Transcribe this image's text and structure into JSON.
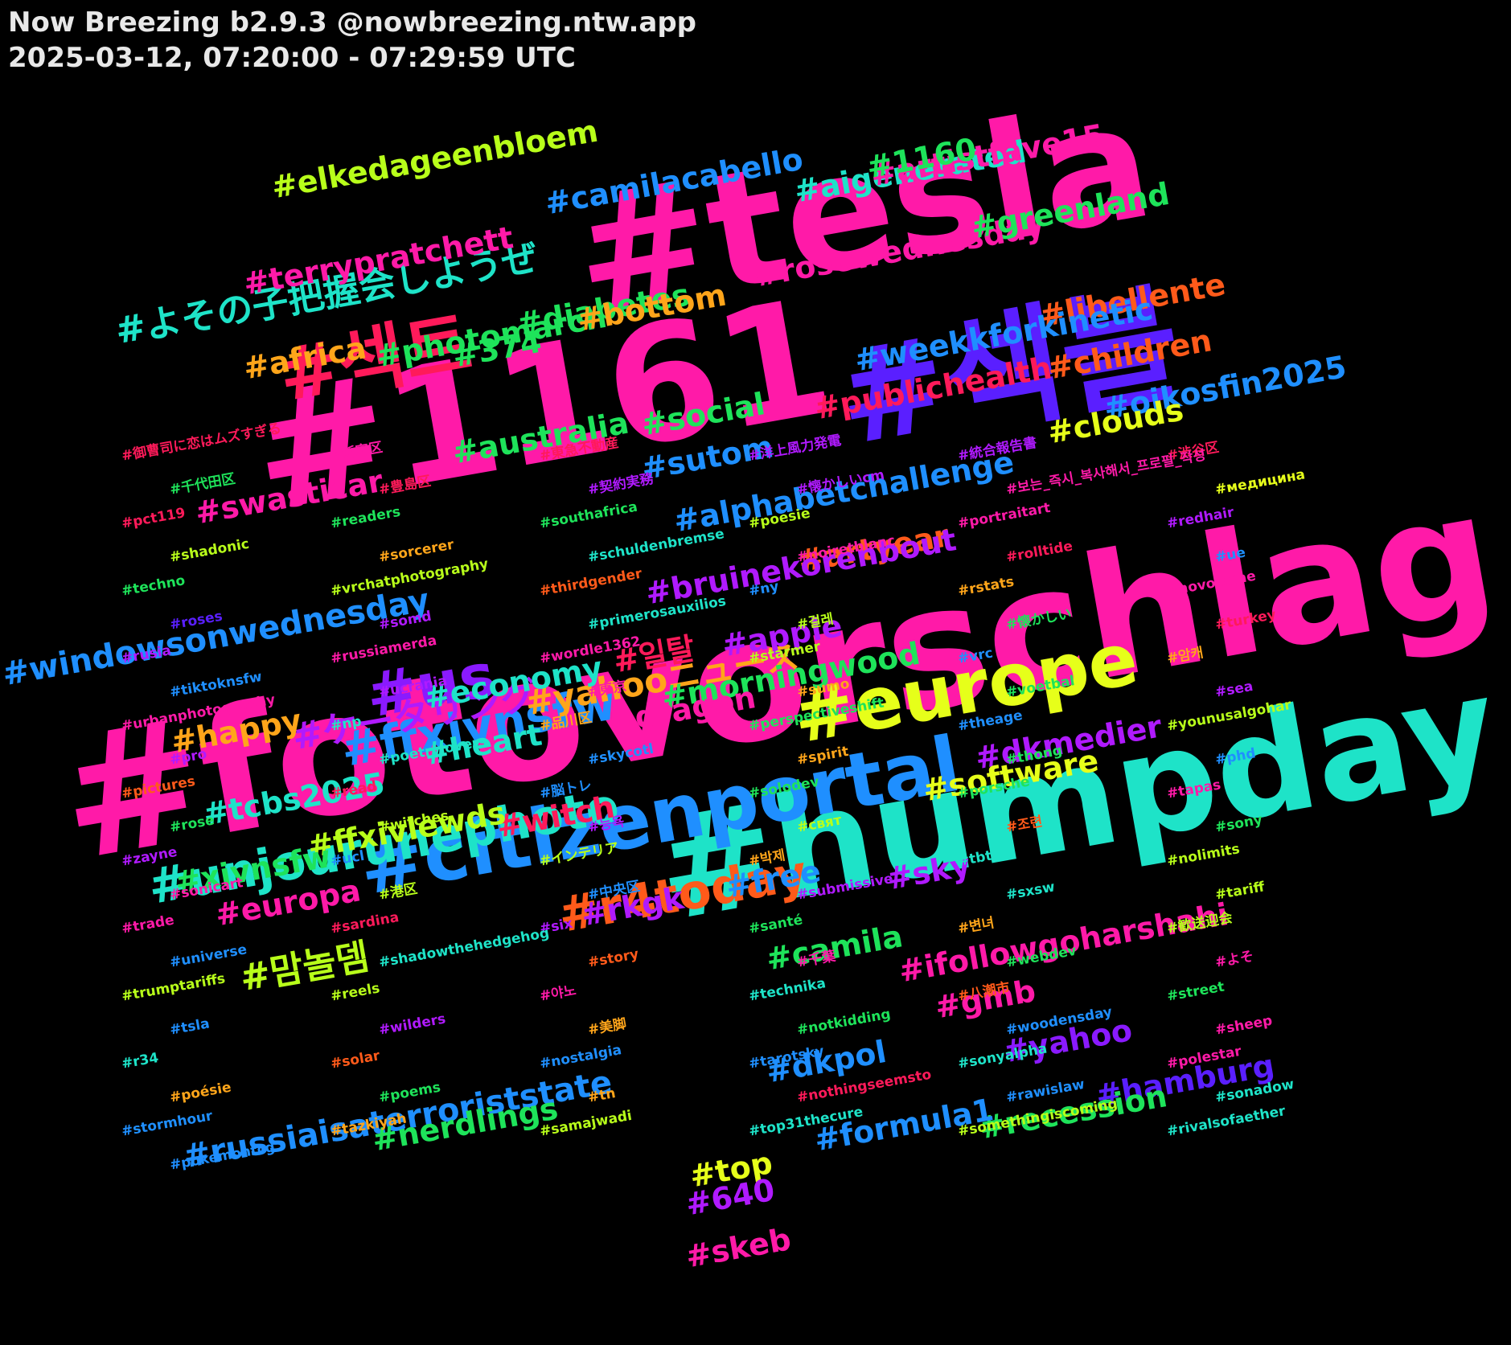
{
  "header": {
    "title": "Now Breezing b2.9.3 @nowbreezing.ntw.app",
    "subtitle": "2025-03-12, 07:20:00 - 07:29:59 UTC"
  },
  "tags": [
    {
      "text": "#fotovorschlag",
      "color": "#ff1aa8"
    },
    {
      "text": "#humpday",
      "color": "#1ee3c8"
    },
    {
      "text": "#tesla",
      "color": "#ff1aa8"
    },
    {
      "text": "#1161",
      "color": "#ff1aa8"
    },
    {
      "text": "#섹블",
      "color": "#5a1fff"
    },
    {
      "text": "#섹트",
      "color": "#ff1a5a"
    },
    {
      "text": "#citizenportal",
      "color": "#1f8fff"
    },
    {
      "text": "#europe",
      "color": "#e6ff1a"
    },
    {
      "text": "#us",
      "color": "#8a1aff"
    },
    {
      "text": "#unjourunephoto",
      "color": "#1ee3c8"
    },
    {
      "text": "#r4today",
      "color": "#ff5a1a"
    },
    {
      "text": "#ffxivnsfw",
      "color": "#1f8fff"
    },
    {
      "text": "#よその子把握会しようぜ",
      "color": "#1ee3c8"
    },
    {
      "text": "#ケータリング",
      "color": "#b01aff"
    },
    {
      "text": "#windowsonwednesday",
      "color": "#1f8fff"
    },
    {
      "text": "#yahooニュース",
      "color": "#ffa51a"
    },
    {
      "text": "#맘놀뎀",
      "color": "#b8ff1a"
    },
    {
      "text": "#russiaisaterroriststate",
      "color": "#1f8fff"
    },
    {
      "text": "#camilacabello",
      "color": "#1f8fff"
    },
    {
      "text": "#elkedageenbloem",
      "color": "#b8ff1a"
    },
    {
      "text": "#aigenerated",
      "color": "#1ee3c8"
    },
    {
      "text": "#terrypratchett",
      "color": "#ff1aa8"
    },
    {
      "text": "#rosewednesday",
      "color": "#ff1aa8"
    },
    {
      "text": "#greenland",
      "color": "#1ee35a"
    },
    {
      "text": "#photomarch",
      "color": "#1ee35a"
    },
    {
      "text": "#libellente",
      "color": "#ff5a1a"
    },
    {
      "text": "#artistfave15",
      "color": "#ff1aa8"
    },
    {
      "text": "#1160",
      "color": "#1ee35a"
    },
    {
      "text": "#diabetes",
      "color": "#1ee35a"
    },
    {
      "text": "#bottom",
      "color": "#ffa51a"
    },
    {
      "text": "#weekkforkinetic",
      "color": "#1f8fff"
    },
    {
      "text": "#children",
      "color": "#ff5a1a"
    },
    {
      "text": "#oikosfin2025",
      "color": "#1f8fff"
    },
    {
      "text": "#africa",
      "color": "#ffa51a"
    },
    {
      "text": "#374",
      "color": "#1ee35a"
    },
    {
      "text": "#social",
      "color": "#1ee35a"
    },
    {
      "text": "#clouds",
      "color": "#e6ff1a"
    },
    {
      "text": "#australia",
      "color": "#1ee35a"
    },
    {
      "text": "#publichealth",
      "color": "#ff1a5a"
    },
    {
      "text": "#sutom",
      "color": "#1f8fff"
    },
    {
      "text": "#swasticar",
      "color": "#ff1aa8"
    },
    {
      "text": "#alphabetchallenge",
      "color": "#1f8fff"
    },
    {
      "text": "#artyear",
      "color": "#ff5a1a"
    },
    {
      "text": "#bruinekorenbout",
      "color": "#b01aff"
    },
    {
      "text": "#apple",
      "color": "#b01aff"
    },
    {
      "text": "#일탈",
      "color": "#ff1a5a"
    },
    {
      "text": "#economy",
      "color": "#1ee3c8"
    },
    {
      "text": "#morningwood",
      "color": "#1ee35a"
    },
    {
      "text": "#dragon",
      "color": "#ff1aa8"
    },
    {
      "text": "#happy",
      "color": "#ffa51a"
    },
    {
      "text": "#dkmedier",
      "color": "#b01aff"
    },
    {
      "text": "#tcbs2025",
      "color": "#1ee3c8"
    },
    {
      "text": "#heart",
      "color": "#1ee3c8"
    },
    {
      "text": "#software",
      "color": "#e6ff1a"
    },
    {
      "text": "#witch",
      "color": "#ff1a5a"
    },
    {
      "text": "#ffxivlewds",
      "color": "#b8ff1a"
    },
    {
      "text": "#xivnsfw",
      "color": "#1ee35a"
    },
    {
      "text": "#europa",
      "color": "#ff1aa8"
    },
    {
      "text": "#free",
      "color": "#1f8fff"
    },
    {
      "text": "#gmb",
      "color": "#ff1aa8"
    },
    {
      "text": "#ifollowgoharshahi",
      "color": "#ff1aa8"
    },
    {
      "text": "#sky",
      "color": "#b01aff"
    },
    {
      "text": "#yahoo",
      "color": "#8a1aff"
    },
    {
      "text": "#rkgk",
      "color": "#b01aff"
    },
    {
      "text": "#hamburg",
      "color": "#5a1fff"
    },
    {
      "text": "#camila",
      "color": "#1ee35a"
    },
    {
      "text": "#dkpol",
      "color": "#1f8fff"
    },
    {
      "text": "#recession",
      "color": "#1ee35a"
    },
    {
      "text": "#formula1",
      "color": "#1f8fff"
    },
    {
      "text": "#nerdlings",
      "color": "#1ee35a"
    },
    {
      "text": "#top",
      "color": "#e6ff1a"
    },
    {
      "text": "#640",
      "color": "#b01aff"
    },
    {
      "text": "#skeb",
      "color": "#ff1aa8"
    },
    {
      "text": "#御曹司に恋はムズすぎる",
      "color": "#ff1a5a"
    },
    {
      "text": "#新宿区",
      "color": "#ff1aa8"
    },
    {
      "text": "#東急不動産",
      "color": "#ff1a5a"
    },
    {
      "text": "#洋上風力発電",
      "color": "#b01aff"
    },
    {
      "text": "#統合報告書",
      "color": "#b01aff"
    },
    {
      "text": "#渋谷区",
      "color": "#ff1a5a"
    },
    {
      "text": "#千代田区",
      "color": "#1ee35a"
    },
    {
      "text": "#豊島区",
      "color": "#ff1a5a"
    },
    {
      "text": "#契約実務",
      "color": "#b01aff"
    },
    {
      "text": "#懐かしいcm",
      "color": "#b01aff"
    },
    {
      "text": "#보는_즉시_복사해서_프로필_작성",
      "color": "#ff1aa8"
    },
    {
      "text": "#medicina",
      "label": "#медицина",
      "color": "#e6ff1a"
    },
    {
      "text": "#pct119",
      "color": "#ff1a5a"
    },
    {
      "text": "#readers",
      "color": "#1ee35a"
    },
    {
      "text": "#southafrica",
      "color": "#1ee35a"
    },
    {
      "text": "#poesie",
      "color": "#b8ff1a"
    },
    {
      "text": "#portraitart",
      "color": "#ff1aa8"
    },
    {
      "text": "#redhair",
      "color": "#b01aff"
    },
    {
      "text": "#shadonic",
      "color": "#b8ff1a"
    },
    {
      "text": "#sorcerer",
      "color": "#ffa51a"
    },
    {
      "text": "#schuldenbremse",
      "color": "#1ee3c8"
    },
    {
      "text": "#noiretblanc",
      "color": "#ff1aa8"
    },
    {
      "text": "#rolltide",
      "color": "#ff1a5a"
    },
    {
      "text": "#ue",
      "color": "#1f8fff"
    },
    {
      "text": "#techno",
      "color": "#1ee35a"
    },
    {
      "text": "#vrchatphotography",
      "color": "#b8ff1a"
    },
    {
      "text": "#thirdgender",
      "color": "#ff5a1a"
    },
    {
      "text": "#ny",
      "color": "#1f8fff"
    },
    {
      "text": "#rstats",
      "color": "#ffa51a"
    },
    {
      "text": "#novocaine",
      "color": "#ff1aa8"
    },
    {
      "text": "#roses",
      "color": "#5a1fff"
    },
    {
      "text": "#somd",
      "color": "#b01aff"
    },
    {
      "text": "#primerosauxilios",
      "color": "#1ee3c8"
    },
    {
      "text": "#걸레",
      "color": "#b8ff1a"
    },
    {
      "text": "#懐かしい",
      "color": "#1ee35a"
    },
    {
      "text": "#turkey",
      "color": "#ff1a5a"
    },
    {
      "text": "#rusia",
      "color": "#b01aff"
    },
    {
      "text": "#russiamerda",
      "color": "#ff1aa8"
    },
    {
      "text": "#wordle1362",
      "color": "#ff1aa8"
    },
    {
      "text": "#starmer",
      "color": "#b8ff1a"
    },
    {
      "text": "#vrc",
      "color": "#1f8fff"
    },
    {
      "text": "#암캐",
      "color": "#ffa51a"
    },
    {
      "text": "#tiktoknsfw",
      "color": "#1f8fff"
    },
    {
      "text": "#ucrania",
      "color": "#b01aff"
    },
    {
      "text": "#東京",
      "color": "#ff1aa8"
    },
    {
      "text": "#sumo",
      "color": "#ffa51a"
    },
    {
      "text": "#voetbal",
      "color": "#1ee35a"
    },
    {
      "text": "#sea",
      "color": "#b01aff"
    },
    {
      "text": "#urbanphotography",
      "color": "#ff1aa8"
    },
    {
      "text": "#np",
      "color": "#1ee3c8"
    },
    {
      "text": "#品川区",
      "color": "#ffa51a"
    },
    {
      "text": "#perspectiveshift",
      "color": "#1ee35a"
    },
    {
      "text": "#theage",
      "color": "#1f8fff"
    },
    {
      "text": "#younusalgohar",
      "color": "#b8ff1a"
    },
    {
      "text": "#pro",
      "color": "#b01aff"
    },
    {
      "text": "#poetrylovers",
      "color": "#1ee3c8"
    },
    {
      "text": "#skycotl",
      "color": "#1f8fff"
    },
    {
      "text": "#spirit",
      "color": "#ffa51a"
    },
    {
      "text": "#thong",
      "color": "#1ee35a"
    },
    {
      "text": "#phd",
      "color": "#1f8fff"
    },
    {
      "text": "#pictures",
      "color": "#ff5a1a"
    },
    {
      "text": "#read",
      "color": "#ff1a5a"
    },
    {
      "text": "#脳トレ",
      "color": "#1f8fff"
    },
    {
      "text": "#solodev",
      "color": "#1ee35a"
    },
    {
      "text": "#porsche",
      "color": "#1ee35a"
    },
    {
      "text": "#tapas",
      "color": "#ff1aa8"
    },
    {
      "text": "#rose",
      "color": "#1ee35a"
    },
    {
      "text": "#witches",
      "color": "#b8ff1a"
    },
    {
      "text": "#능욕",
      "color": "#b01aff"
    },
    {
      "text": "#sviat",
      "label": "#свят",
      "color": "#b8ff1a"
    },
    {
      "text": "#조련",
      "color": "#ff5a1a"
    },
    {
      "text": "#sony",
      "color": "#1ee35a"
    },
    {
      "text": "#zayne",
      "color": "#b01aff"
    },
    {
      "text": "#ucl",
      "color": "#1f8fff"
    },
    {
      "text": "#インテリア",
      "color": "#b8ff1a"
    },
    {
      "text": "#박제",
      "color": "#ffa51a"
    },
    {
      "text": "#tbt",
      "color": "#1ee3c8"
    },
    {
      "text": "#nolimits",
      "color": "#b8ff1a"
    },
    {
      "text": "#sonicart",
      "color": "#ff1aa8"
    },
    {
      "text": "#港区",
      "color": "#b8ff1a"
    },
    {
      "text": "#中央区",
      "color": "#1f8fff"
    },
    {
      "text": "#submissive",
      "color": "#b01aff"
    },
    {
      "text": "#sxsw",
      "color": "#1ee3c8"
    },
    {
      "text": "#tariff",
      "color": "#b8ff1a"
    },
    {
      "text": "#trade",
      "color": "#ff1aa8"
    },
    {
      "text": "#sardina",
      "color": "#ff1a5a"
    },
    {
      "text": "#six",
      "color": "#b01aff"
    },
    {
      "text": "#santé",
      "color": "#1ee35a"
    },
    {
      "text": "#변녀",
      "color": "#ffa51a"
    },
    {
      "text": "#歓送迎会",
      "color": "#b8ff1a"
    },
    {
      "text": "#universe",
      "color": "#1f8fff"
    },
    {
      "text": "#shadowthehedgehog",
      "color": "#1ee3c8"
    },
    {
      "text": "#story",
      "color": "#ff5a1a"
    },
    {
      "text": "#千葉",
      "color": "#ff1aa8"
    },
    {
      "text": "#webdev",
      "color": "#1ee35a"
    },
    {
      "text": "#よそ",
      "color": "#ff1aa8"
    },
    {
      "text": "#trumptariffs",
      "color": "#b8ff1a"
    },
    {
      "text": "#reels",
      "color": "#b8ff1a"
    },
    {
      "text": "#야노",
      "color": "#ff1aa8"
    },
    {
      "text": "#technika",
      "color": "#1ee3c8"
    },
    {
      "text": "#八潮市",
      "color": "#ff5a1a"
    },
    {
      "text": "#street",
      "color": "#1ee35a"
    },
    {
      "text": "#tsla",
      "color": "#1f8fff"
    },
    {
      "text": "#wilders",
      "color": "#b01aff"
    },
    {
      "text": "#美脚",
      "color": "#ffa51a"
    },
    {
      "text": "#notkidding",
      "color": "#1ee35a"
    },
    {
      "text": "#woodensday",
      "color": "#1f8fff"
    },
    {
      "text": "#sheep",
      "color": "#ff1aa8"
    },
    {
      "text": "#r34",
      "color": "#1ee3c8"
    },
    {
      "text": "#solar",
      "color": "#ff5a1a"
    },
    {
      "text": "#nostalgia",
      "color": "#1f8fff"
    },
    {
      "text": "#tarotsky",
      "color": "#1f8fff"
    },
    {
      "text": "#sonyalpha",
      "color": "#1ee3c8"
    },
    {
      "text": "#polestar",
      "color": "#ff1aa8"
    },
    {
      "text": "#poésie",
      "color": "#ffa51a"
    },
    {
      "text": "#poems",
      "color": "#1ee35a"
    },
    {
      "text": "#tn",
      "color": "#ffa51a"
    },
    {
      "text": "#nothingseemsto",
      "color": "#ff1a5a"
    },
    {
      "text": "#rawislaw",
      "color": "#1f8fff"
    },
    {
      "text": "#sonadow",
      "color": "#1ee3c8"
    },
    {
      "text": "#stormhour",
      "color": "#1f8fff"
    },
    {
      "text": "#tazkiyah",
      "color": "#ffa51a"
    },
    {
      "text": "#samajwadi",
      "color": "#b8ff1a"
    },
    {
      "text": "#top31thecure",
      "color": "#1ee3c8"
    },
    {
      "text": "#somethingiscoming",
      "color": "#b8ff1a"
    },
    {
      "text": "#rivalsofaether",
      "color": "#1ee3c8"
    },
    {
      "text": "#pokemontcg",
      "color": "#1f8fff"
    }
  ]
}
